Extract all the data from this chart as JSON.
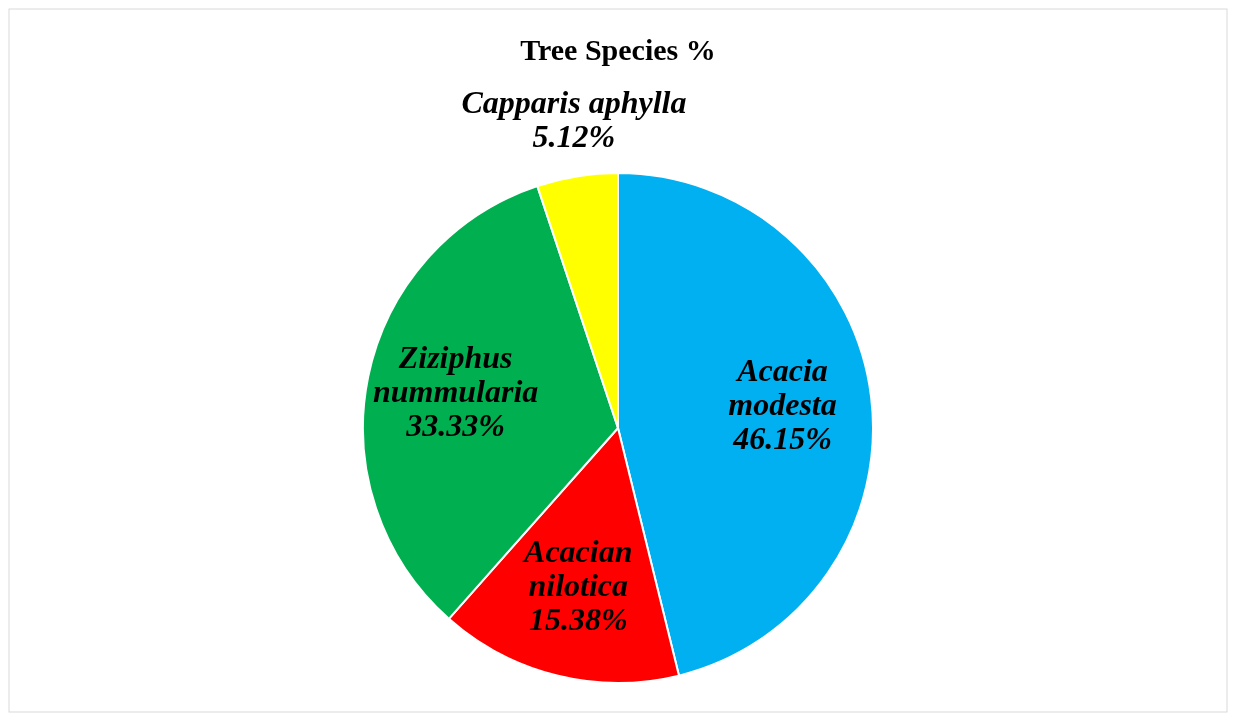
{
  "chart_data": {
    "type": "pie",
    "title": "Tree Species %",
    "categories": [
      "Acacia modesta",
      "Acacian nilotica",
      "Ziziphus nummularia",
      "Capparis aphylla"
    ],
    "values": [
      46.15,
      15.38,
      33.33,
      5.12
    ],
    "value_labels": [
      "46.15%",
      "15.38%",
      "33.33%",
      "5.12%"
    ],
    "colors": [
      "#00b0f0",
      "#ff0000",
      "#00b050",
      "#ffff00"
    ]
  }
}
